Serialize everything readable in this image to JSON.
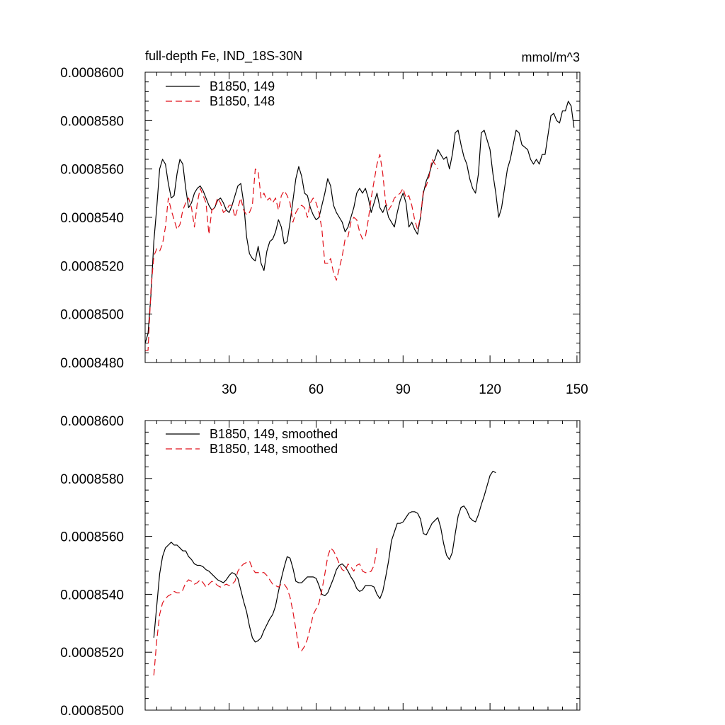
{
  "chart_data": [
    {
      "type": "line",
      "title_left": "full-depth Fe, IND_18S-30N",
      "title_right": "mmol/m^3",
      "xlim": [
        1,
        151
      ],
      "ylim": [
        0.000848,
        0.00086
      ],
      "x_ticks": [
        30,
        60,
        90,
        120,
        150
      ],
      "x_tick_labels": [
        "30",
        "60",
        "90",
        "120",
        "150"
      ],
      "y_ticks": [
        0.000848,
        0.00085,
        0.000852,
        0.000854,
        0.000856,
        0.000858,
        0.00086
      ],
      "y_tick_labels": [
        "0.0008480",
        "0.0008500",
        "0.0008520",
        "0.0008540",
        "0.0008560",
        "0.0008580",
        "0.0008600"
      ],
      "legend": "top-left",
      "series": [
        {
          "name": "B1850, 149",
          "color": "#000000",
          "dash": "solid",
          "start": 1,
          "values": [
            848.8,
            849.2,
            850.8,
            853.0,
            854.4,
            856.0,
            856.4,
            856.2,
            855.4,
            854.8,
            854.9,
            855.8,
            856.4,
            856.2,
            855.2,
            854.4,
            854.6,
            855.0,
            855.2,
            855.3,
            855.1,
            854.8,
            854.5,
            854.3,
            854.4,
            854.7,
            854.8,
            854.6,
            854.3,
            854.2,
            854.5,
            854.9,
            855.3,
            855.4,
            854.6,
            853.2,
            852.5,
            852.3,
            852.2,
            852.8,
            852.1,
            851.8,
            852.6,
            853.0,
            853.1,
            853.4,
            853.9,
            853.6,
            852.9,
            853.0,
            853.8,
            854.7,
            855.6,
            856.1,
            855.7,
            855.0,
            854.9,
            854.4,
            854.1,
            853.9,
            854.0,
            854.5,
            855.0,
            855.6,
            855.3,
            854.5,
            854.2,
            854.0,
            853.8,
            853.4,
            853.6,
            854.0,
            854.4,
            855.0,
            855.2,
            855.0,
            855.2,
            854.8,
            854.2,
            854.6,
            855.0,
            854.4,
            854.2,
            854.5,
            854.0,
            853.8,
            853.6,
            854.2,
            854.7,
            855.0,
            854.6,
            853.6,
            853.8,
            853.5,
            853.3,
            854.0,
            855.0,
            855.5,
            855.8,
            856.2,
            856.4,
            856.8,
            856.6,
            856.4,
            856.5,
            856.0,
            856.6,
            857.5,
            857.6,
            857.0,
            856.5,
            856.2,
            855.6,
            855.2,
            855.0,
            855.8,
            857.5,
            857.6,
            857.2,
            856.8,
            855.8,
            855.0,
            854.0,
            854.4,
            855.2,
            856.0,
            856.4,
            857.0,
            857.6,
            857.5,
            857.0,
            856.9,
            856.8,
            856.4,
            856.2,
            856.4,
            856.2,
            856.6,
            856.6,
            857.4,
            858.2,
            858.3,
            858.0,
            857.9,
            858.4,
            858.4,
            858.8,
            858.6,
            857.7
          ]
        },
        {
          "name": "B1850, 148",
          "color": "#e0101a",
          "dash": "dashed",
          "start": 1,
          "values": [
            848.5,
            848.5,
            851.0,
            852.4,
            852.7,
            852.6,
            852.9,
            853.6,
            854.8,
            854.3,
            853.9,
            853.5,
            853.7,
            854.3,
            854.6,
            854.8,
            854.4,
            853.6,
            854.6,
            855.2,
            854.9,
            854.6,
            853.3,
            854.3,
            854.4,
            854.8,
            854.6,
            854.2,
            854.3,
            854.5,
            854.5,
            854.0,
            854.4,
            854.8,
            854.3,
            854.1,
            854.2,
            854.5,
            856.0,
            855.9,
            854.8,
            855.0,
            854.7,
            854.8,
            854.6,
            854.8,
            854.3,
            854.9,
            855.1,
            854.9,
            854.6,
            853.8,
            854.2,
            854.4,
            854.5,
            854.4,
            854.0,
            854.6,
            854.8,
            854.6,
            854.2,
            853.5,
            852.1,
            852.1,
            852.3,
            851.7,
            851.4,
            851.9,
            852.4,
            853.1,
            853.2,
            853.8,
            854.0,
            853.9,
            853.4,
            853.1,
            853.2,
            853.9,
            854.8,
            855.5,
            856.2,
            856.6,
            855.8,
            854.6,
            854.3,
            854.5,
            854.8,
            854.9,
            855.0,
            855.2,
            854.8,
            854.9,
            854.5,
            853.9,
            853.5,
            854.0,
            855.1,
            855.3,
            855.7,
            856.4,
            856.2,
            856.0
          ]
        }
      ]
    },
    {
      "type": "line",
      "xlim": [
        1,
        151
      ],
      "ylim": [
        0.00085,
        0.00086
      ],
      "x_ticks": [
        30,
        60,
        90,
        120,
        150
      ],
      "y_ticks": [
        0.00085,
        0.000852,
        0.000854,
        0.000856,
        0.000858,
        0.00086
      ],
      "y_tick_labels": [
        "0.0008500",
        "0.0008520",
        "0.0008540",
        "0.0008560",
        "0.0008580",
        "0.0008600"
      ],
      "legend": "top-left",
      "series": [
        {
          "name": "B1850, 149, smoothed",
          "color": "#000000",
          "dash": "solid",
          "start": 4,
          "values": [
            852.5,
            853.6,
            854.7,
            855.3,
            855.6,
            855.7,
            855.8,
            855.7,
            855.7,
            855.6,
            855.5,
            855.5,
            855.3,
            855.2,
            855.05,
            855.0,
            855.0,
            854.95,
            854.85,
            854.8,
            854.7,
            854.6,
            854.5,
            854.45,
            854.4,
            854.5,
            854.65,
            854.75,
            854.7,
            854.55,
            854.15,
            853.75,
            853.4,
            852.9,
            852.5,
            852.35,
            852.4,
            852.5,
            852.75,
            852.95,
            853.15,
            853.3,
            853.6,
            854.1,
            854.55,
            854.95,
            855.3,
            855.25,
            854.9,
            854.45,
            854.4,
            854.4,
            854.5,
            854.6,
            854.6,
            854.6,
            854.55,
            854.3,
            854.0,
            853.95,
            854.05,
            854.3,
            854.55,
            854.85,
            855.0,
            855.05,
            854.95,
            854.8,
            854.6,
            854.45,
            854.2,
            854.1,
            854.15,
            854.3,
            854.3,
            854.3,
            854.25,
            854.0,
            853.85,
            854.1,
            854.6,
            855.15,
            855.85,
            856.15,
            856.45,
            856.45,
            856.5,
            856.65,
            856.8,
            856.85,
            856.85,
            856.8,
            856.6,
            856.1,
            856.05,
            856.25,
            856.45,
            856.55,
            856.65,
            856.3,
            855.75,
            855.35,
            855.2,
            855.45,
            856.1,
            856.7,
            857.0,
            857.05,
            856.9,
            856.65,
            856.55,
            856.5,
            856.75,
            857.1,
            857.4,
            857.75,
            858.1,
            858.25,
            858.2
          ]
        },
        {
          "name": "B1850, 148, smoothed",
          "color": "#e0101a",
          "dash": "dashed",
          "start": 4,
          "values": [
            851.2,
            852.4,
            853.3,
            853.7,
            853.85,
            853.95,
            854.0,
            854.1,
            854.05,
            854.05,
            854.15,
            854.4,
            854.5,
            854.45,
            854.35,
            854.4,
            854.5,
            854.4,
            854.25,
            854.35,
            854.45,
            854.4,
            854.3,
            854.25,
            854.3,
            854.35,
            854.3,
            854.35,
            854.45,
            854.8,
            854.95,
            855.05,
            855.1,
            855.15,
            854.9,
            854.75,
            854.75,
            854.75,
            854.75,
            854.65,
            854.5,
            854.35,
            854.3,
            854.25,
            854.35,
            854.35,
            854.2,
            853.9,
            853.4,
            852.8,
            852.15,
            852.05,
            852.2,
            852.45,
            852.85,
            853.3,
            853.5,
            853.7,
            854.15,
            854.7,
            855.3,
            855.6,
            855.5,
            855.3,
            855.05,
            854.85,
            854.8,
            855.05,
            854.95,
            854.8,
            855.0,
            855.05,
            854.8,
            854.75,
            854.75,
            854.8,
            855.0,
            855.6
          ]
        }
      ]
    }
  ]
}
